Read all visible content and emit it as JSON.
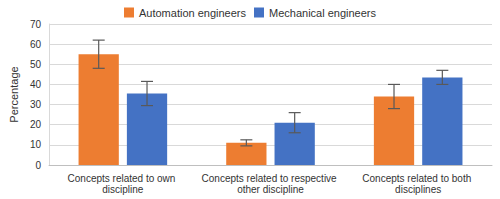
{
  "chart_data": {
    "type": "bar",
    "categories": [
      "Concepts related to own discipline",
      "Concepts related to respective other discipline",
      "Concepts related to both disciplines"
    ],
    "series": [
      {
        "name": "Automation engineers",
        "color": "#ed7d31",
        "values": [
          55,
          11,
          34
        ],
        "errors": [
          7,
          1.5,
          6
        ]
      },
      {
        "name": "Mechanical engineers",
        "color": "#4472c4",
        "values": [
          35.5,
          21,
          43.5
        ],
        "errors": [
          6,
          5,
          3.5
        ]
      }
    ],
    "y_label": "Percentage",
    "ylim": [
      0,
      70
    ],
    "yticks": [
      0,
      10,
      20,
      30,
      40,
      50,
      60,
      70
    ],
    "grid": true,
    "legend": "top"
  }
}
